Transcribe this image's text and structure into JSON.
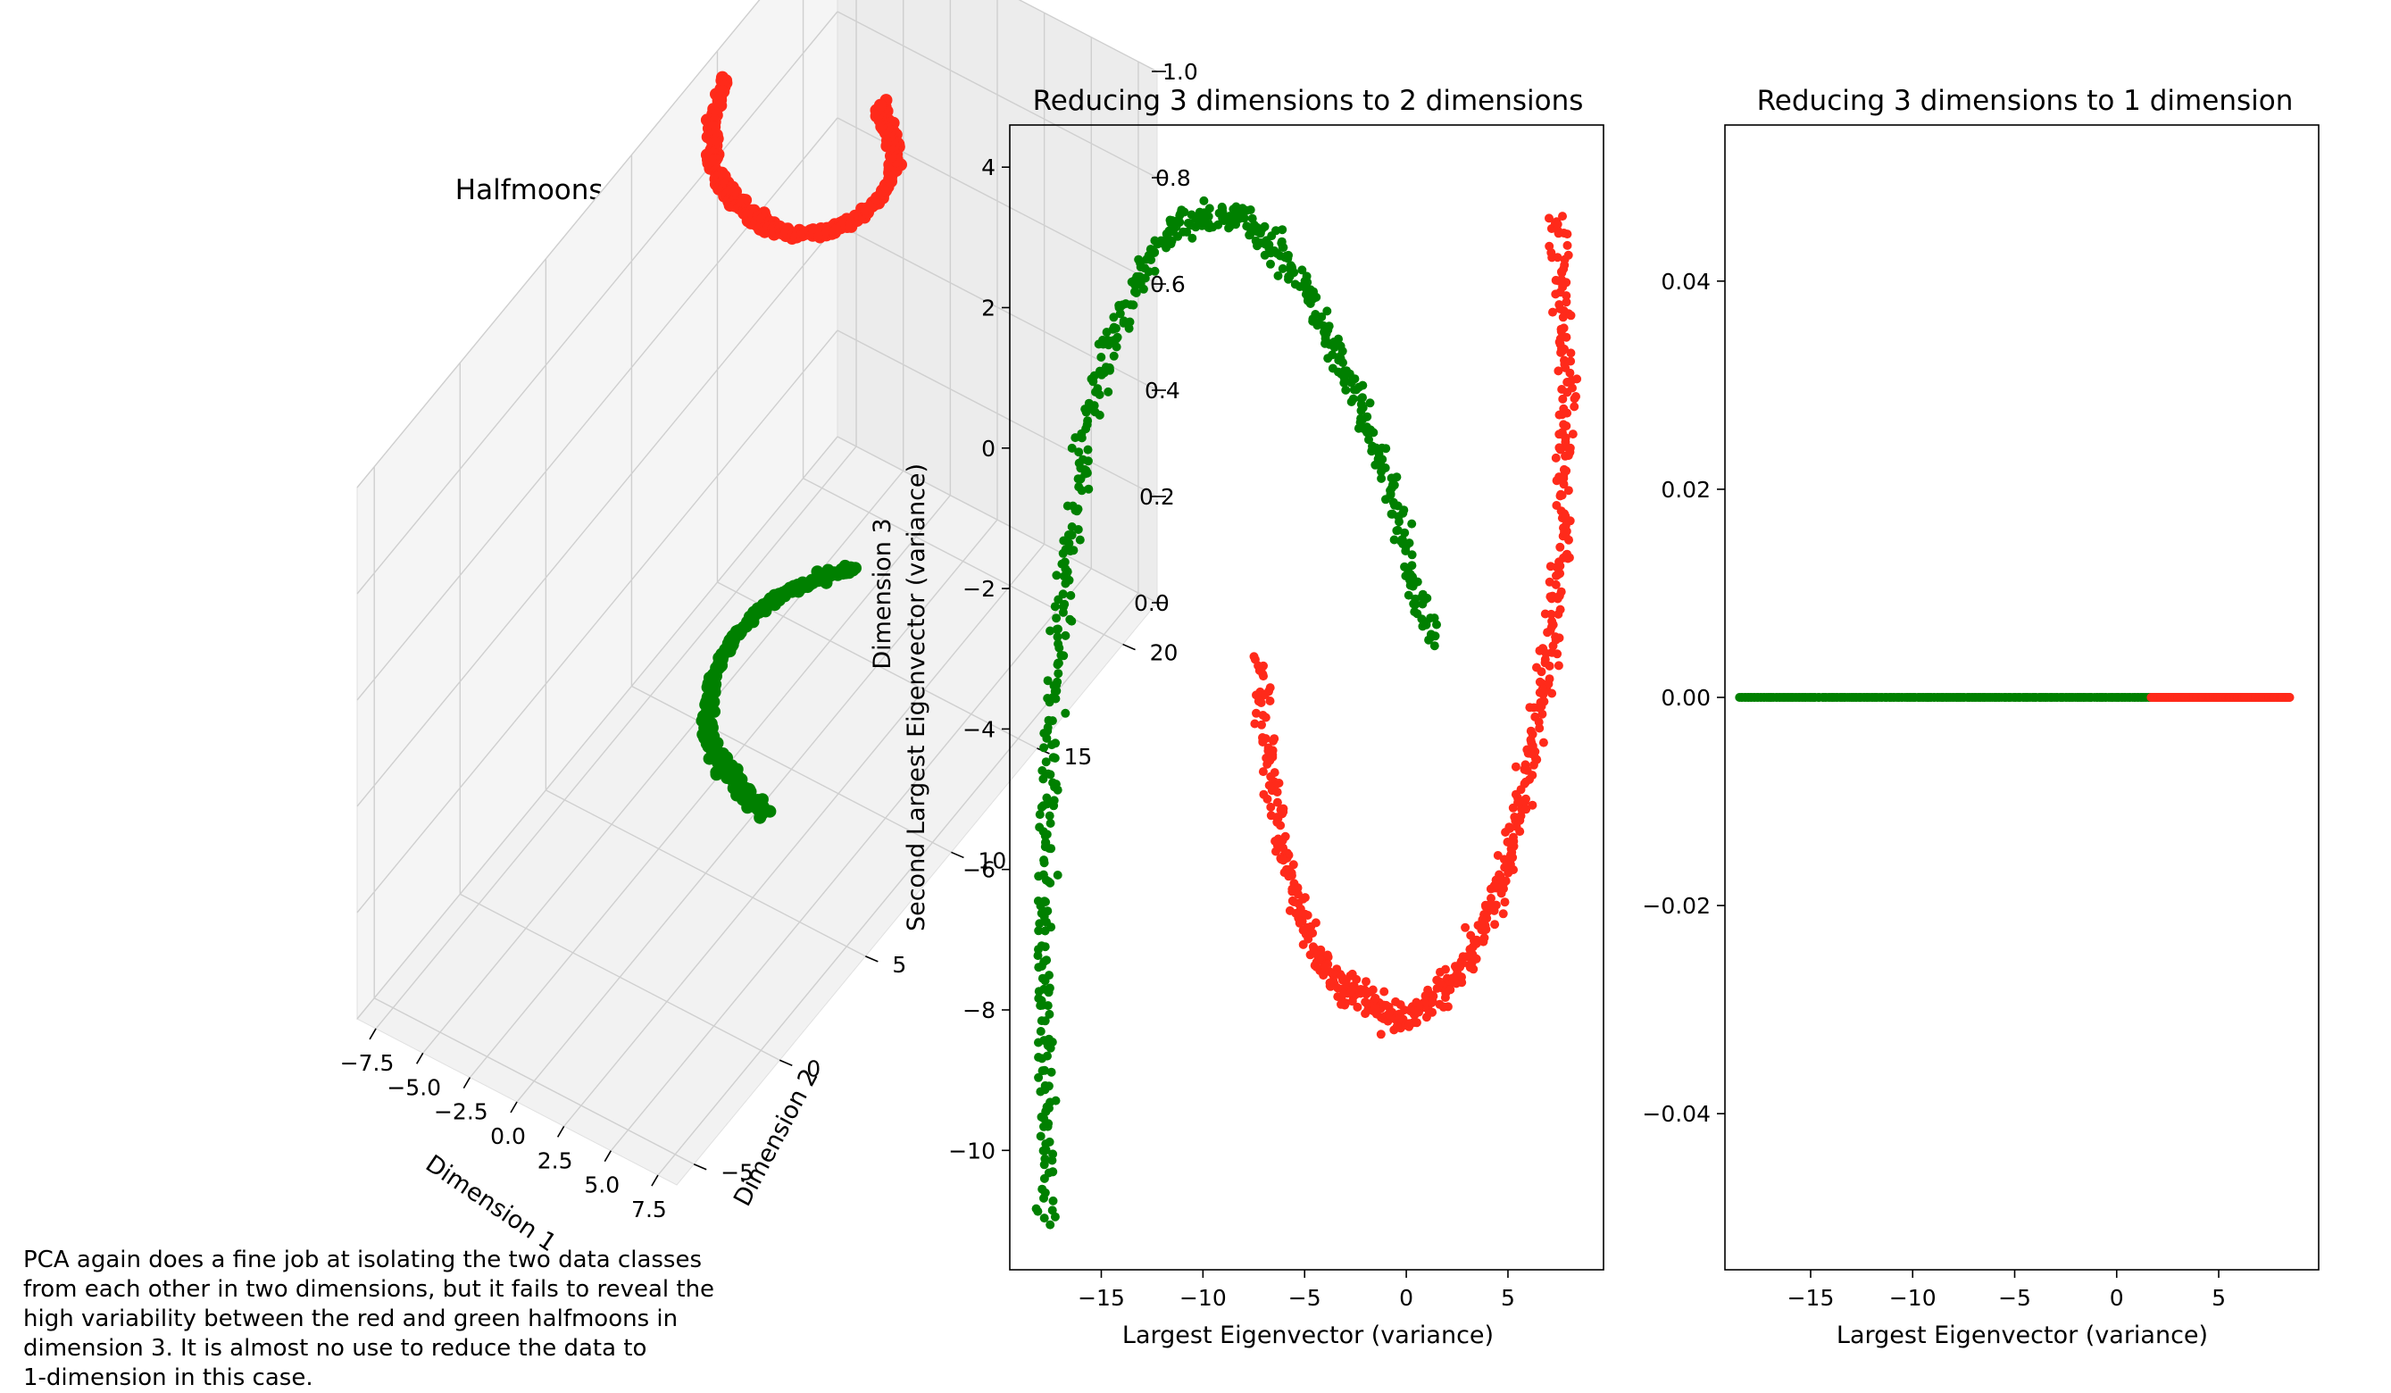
{
  "caption": {
    "lines": [
      "PCA again does a fine job at isolating the two data classes",
      "from each other in two dimensions, but it fails to reveal the",
      "high variability between the red and green halfmoons in",
      "dimension 3. It is almost no use to reduce the data to",
      "1-dimension in this case."
    ]
  },
  "colors": {
    "red": "#ff2a1a",
    "green": "#008000"
  },
  "chart_data": [
    {
      "type": "scatter",
      "projection": "3d",
      "title": "Halfmoons Data Set",
      "xlabel": "Dimension 1",
      "ylabel": "Dimension 2",
      "zlabel": "Dimension 3",
      "xticks": [
        "−7.5",
        "−5.0",
        "−2.5",
        "0.0",
        "2.5",
        "5.0",
        "7.5"
      ],
      "yticks": [
        "−5",
        "0",
        "5",
        "10",
        "15",
        "20"
      ],
      "zticks": [
        "0.0",
        "0.2",
        "0.4",
        "0.6",
        "0.8",
        "1.0"
      ],
      "xlim": [
        -8.5,
        8.5
      ],
      "ylim": [
        -6,
        22
      ],
      "zlim": [
        0,
        1
      ],
      "series": [
        {
          "color": "red",
          "z": 1,
          "points": [
            [
              -7.5,
              14.3
            ],
            [
              -7.0,
              13.5
            ],
            [
              -6.3,
              12.3
            ],
            [
              -5.4,
              11.3
            ],
            [
              -4.1,
              10.5
            ],
            [
              -2.6,
              10.1
            ],
            [
              -1.3,
              10.0
            ],
            [
              0.1,
              10.2
            ],
            [
              1.1,
              10.8
            ],
            [
              1.8,
              11.7
            ],
            [
              2.1,
              12.7
            ],
            [
              1.9,
              13.7
            ],
            [
              1.3,
              14.6
            ],
            [
              0.2,
              15.4
            ],
            [
              -0.8,
              16.0
            ]
          ]
        },
        {
          "color": "green",
          "z": 0,
          "points": [
            [
              -3.8,
              17.8
            ],
            [
              -4.8,
              17.0
            ],
            [
              -5.6,
              16.0
            ],
            [
              -6.1,
              14.8
            ],
            [
              -6.2,
              13.3
            ],
            [
              -5.8,
              11.8
            ],
            [
              -5.0,
              10.6
            ],
            [
              -4.0,
              9.6
            ],
            [
              -2.8,
              9.0
            ],
            [
              -1.5,
              8.5
            ],
            [
              -0.5,
              8.2
            ],
            [
              0.5,
              8.1
            ]
          ]
        }
      ]
    },
    {
      "type": "scatter",
      "title": "Reducing 3 dimensions to 2 dimensions",
      "xlabel": "Largest Eigenvector (variance)",
      "ylabel": "Second Largest Eigenvector (variance)",
      "xticks": [
        -15,
        -10,
        -5,
        0,
        5
      ],
      "yticks": [
        4,
        2,
        0,
        -2,
        -4,
        -6,
        -8,
        -10
      ],
      "ytick_labels": [
        "4",
        "2",
        "0",
        "−2",
        "−4",
        "−6",
        "−8",
        "−10"
      ],
      "xtick_labels": [
        "−15",
        "−10",
        "−5",
        "0",
        "5"
      ],
      "xlim": [
        -19.5,
        9.7
      ],
      "ylim": [
        -11.7,
        4.6
      ],
      "series": [
        {
          "color": "green",
          "points": [
            [
              -17.6,
              -11.0
            ],
            [
              -17.7,
              -9.5
            ],
            [
              -17.8,
              -8.0
            ],
            [
              -17.8,
              -7.0
            ],
            [
              -17.7,
              -6.0
            ],
            [
              -17.6,
              -5.0
            ],
            [
              -17.4,
              -4.0
            ],
            [
              -17.2,
              -3.0
            ],
            [
              -16.8,
              -2.0
            ],
            [
              -16.3,
              -1.0
            ],
            [
              -15.8,
              0.0
            ],
            [
              -15.2,
              0.8
            ],
            [
              -14.5,
              1.5
            ],
            [
              -13.5,
              2.2
            ],
            [
              -12.5,
              2.8
            ],
            [
              -11.0,
              3.2
            ],
            [
              -9.8,
              3.3
            ],
            [
              -8.4,
              3.3
            ],
            [
              -7.2,
              3.1
            ],
            [
              -6.0,
              2.7
            ],
            [
              -4.8,
              2.2
            ],
            [
              -3.8,
              1.6
            ],
            [
              -2.8,
              1.0
            ],
            [
              -2.0,
              0.4
            ],
            [
              -1.2,
              -0.3
            ],
            [
              -0.5,
              -0.9
            ],
            [
              0.0,
              -1.5
            ],
            [
              0.4,
              -2.0
            ],
            [
              0.9,
              -2.4
            ],
            [
              1.3,
              -2.8
            ]
          ]
        },
        {
          "color": "red",
          "points": [
            [
              -7.3,
              -3.0
            ],
            [
              -7.0,
              -3.8
            ],
            [
              -6.6,
              -4.8
            ],
            [
              -6.1,
              -5.6
            ],
            [
              -5.5,
              -6.3
            ],
            [
              -4.8,
              -7.0
            ],
            [
              -3.9,
              -7.4
            ],
            [
              -2.8,
              -7.7
            ],
            [
              -1.7,
              -7.9
            ],
            [
              -0.6,
              -8.1
            ],
            [
              0.5,
              -8.1
            ],
            [
              1.5,
              -7.8
            ],
            [
              2.5,
              -7.5
            ],
            [
              3.5,
              -7.0
            ],
            [
              4.5,
              -6.3
            ],
            [
              5.3,
              -5.5
            ],
            [
              6.0,
              -4.6
            ],
            [
              6.6,
              -3.6
            ],
            [
              7.2,
              -2.6
            ],
            [
              7.6,
              -1.6
            ],
            [
              7.8,
              -0.6
            ],
            [
              7.9,
              0.4
            ],
            [
              7.8,
              1.4
            ],
            [
              7.6,
              2.4
            ],
            [
              7.4,
              3.3
            ]
          ]
        }
      ]
    },
    {
      "type": "scatter",
      "title": "Reducing 3 dimensions to 1 dimension",
      "xlabel": "Largest Eigenvector (variance)",
      "ylabel": "",
      "xticks": [
        -15,
        -10,
        -5,
        0,
        5
      ],
      "xtick_labels": [
        "−15",
        "−10",
        "−5",
        "0",
        "5"
      ],
      "yticks": [
        0.04,
        0.02,
        0.0,
        -0.02,
        -0.04
      ],
      "ytick_labels": [
        "0.04",
        "0.02",
        "0.00",
        "−0.02",
        "−0.04"
      ],
      "xlim": [
        -19.2,
        9.9
      ],
      "ylim": [
        -0.055,
        0.055
      ],
      "series": [
        {
          "color": "green",
          "x_range": [
            -18.5,
            1.7
          ],
          "y": 0.0
        },
        {
          "color": "red",
          "x_range": [
            1.7,
            8.5
          ],
          "y": 0.0
        }
      ]
    }
  ]
}
